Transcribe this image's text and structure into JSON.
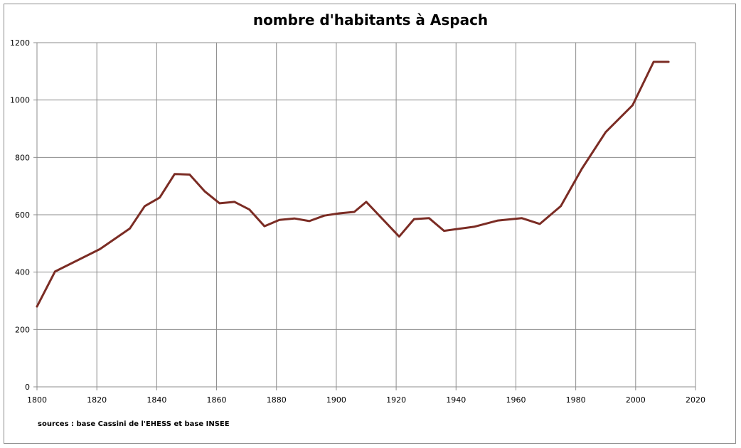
{
  "chart_data": {
    "type": "line",
    "title": "nombre d'habitants à Aspach",
    "source": "sources : base Cassini de l'EHESS et base INSEE",
    "xlabel": "",
    "ylabel": "",
    "xlim": [
      1800,
      2020
    ],
    "ylim": [
      0,
      1200
    ],
    "x_ticks": [
      1800,
      1820,
      1840,
      1860,
      1880,
      1900,
      1920,
      1940,
      1960,
      1980,
      2000,
      2020
    ],
    "y_ticks": [
      0,
      200,
      400,
      600,
      800,
      1000,
      1200
    ],
    "grid": true,
    "legend": "none",
    "line_color": "#7b2c24",
    "series": [
      {
        "x": [
          1800,
          1806,
          1821,
          1831,
          1836,
          1841,
          1846,
          1851,
          1856,
          1861,
          1866,
          1871,
          1876,
          1881,
          1886,
          1891,
          1896,
          1901,
          1906,
          1910,
          1921,
          1926,
          1931,
          1936,
          1946,
          1954,
          1962,
          1968,
          1975,
          1982,
          1990,
          1999,
          2006,
          2011
        ],
        "values": [
          280,
          402,
          480,
          552,
          630,
          660,
          742,
          740,
          682,
          640,
          645,
          618,
          560,
          582,
          587,
          578,
          597,
          605,
          610,
          645,
          524,
          585,
          588,
          544,
          558,
          580,
          588,
          568,
          630,
          760,
          888,
          982,
          1133,
          1133
        ]
      }
    ]
  }
}
